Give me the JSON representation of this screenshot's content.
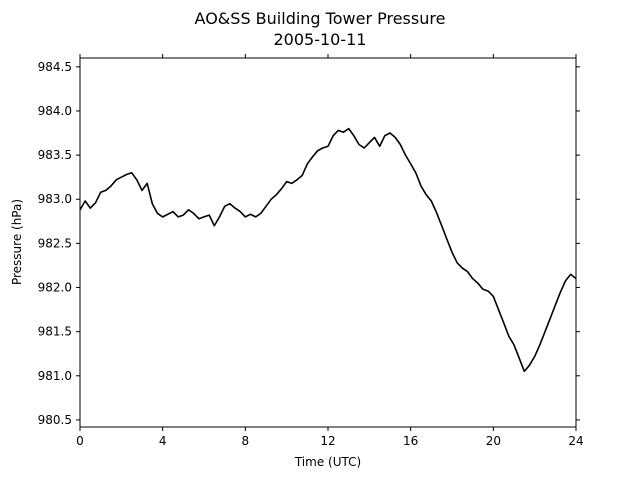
{
  "chart_data": {
    "type": "line",
    "title": "AO&SS Building Tower Pressure",
    "subtitle": "2005-10-11",
    "xlabel": "Time (UTC)",
    "ylabel": "Pressure (hPa)",
    "xlim": [
      0,
      24
    ],
    "ylim": [
      980.42,
      984.6
    ],
    "xticks": [
      0,
      4,
      8,
      12,
      16,
      20,
      24
    ],
    "xtick_labels": [
      "0",
      "4",
      "8",
      "12",
      "16",
      "20",
      "24"
    ],
    "yticks": [
      980.5,
      981.0,
      981.5,
      982.0,
      982.5,
      983.0,
      983.5,
      984.0,
      984.5
    ],
    "ytick_labels": [
      "980.5",
      "981.0",
      "981.5",
      "982.0",
      "982.5",
      "983.0",
      "983.5",
      "984.0",
      "984.5"
    ],
    "grid": false,
    "line_color": "#000000",
    "series": [
      {
        "x": [
          0.0,
          0.25,
          0.5,
          0.75,
          1.0,
          1.25,
          1.5,
          1.75,
          2.0,
          2.25,
          2.5,
          2.75,
          3.0,
          3.25,
          3.5,
          3.75,
          4.0,
          4.25,
          4.5,
          4.75,
          5.0,
          5.25,
          5.5,
          5.75,
          6.0,
          6.25,
          6.5,
          6.75,
          7.0,
          7.25,
          7.5,
          7.75,
          8.0,
          8.25,
          8.5,
          8.75,
          9.0,
          9.25,
          9.5,
          9.75,
          10.0,
          10.25,
          10.5,
          10.75,
          11.0,
          11.25,
          11.5,
          11.75,
          12.0,
          12.25,
          12.5,
          12.75,
          13.0,
          13.25,
          13.5,
          13.75,
          14.0,
          14.25,
          14.5,
          14.75,
          15.0,
          15.25,
          15.5,
          15.75,
          16.0,
          16.25,
          16.5,
          16.75,
          17.0,
          17.25,
          17.5,
          17.75,
          18.0,
          18.25,
          18.5,
          18.75,
          19.0,
          19.25,
          19.5,
          19.75,
          20.0,
          20.25,
          20.5,
          20.75,
          21.0,
          21.25,
          21.5,
          21.75,
          22.0,
          22.25,
          22.5,
          22.75,
          23.0,
          23.25,
          23.5,
          23.75,
          24.0
        ],
        "y": [
          982.88,
          982.98,
          982.9,
          982.96,
          983.08,
          983.1,
          983.15,
          983.22,
          983.25,
          983.28,
          983.3,
          983.22,
          983.1,
          983.18,
          982.95,
          982.84,
          982.8,
          982.83,
          982.86,
          982.8,
          982.82,
          982.88,
          982.84,
          982.78,
          982.8,
          982.82,
          982.7,
          982.8,
          982.92,
          982.95,
          982.9,
          982.86,
          982.8,
          982.83,
          982.8,
          982.84,
          982.92,
          983.0,
          983.05,
          983.12,
          983.2,
          983.18,
          983.22,
          983.27,
          983.4,
          983.48,
          983.55,
          983.58,
          983.6,
          983.72,
          983.78,
          983.76,
          983.8,
          983.72,
          983.62,
          983.58,
          983.64,
          983.7,
          983.6,
          983.72,
          983.75,
          983.7,
          983.62,
          983.5,
          983.4,
          983.3,
          983.15,
          983.05,
          982.98,
          982.85,
          982.7,
          982.55,
          982.4,
          982.28,
          982.22,
          982.18,
          982.1,
          982.05,
          981.98,
          981.96,
          981.9,
          981.75,
          981.6,
          981.45,
          981.35,
          981.2,
          981.05,
          981.12,
          981.22,
          981.35,
          981.5,
          981.65,
          981.8,
          981.95,
          982.08,
          982.15,
          982.1
        ]
      }
    ]
  }
}
